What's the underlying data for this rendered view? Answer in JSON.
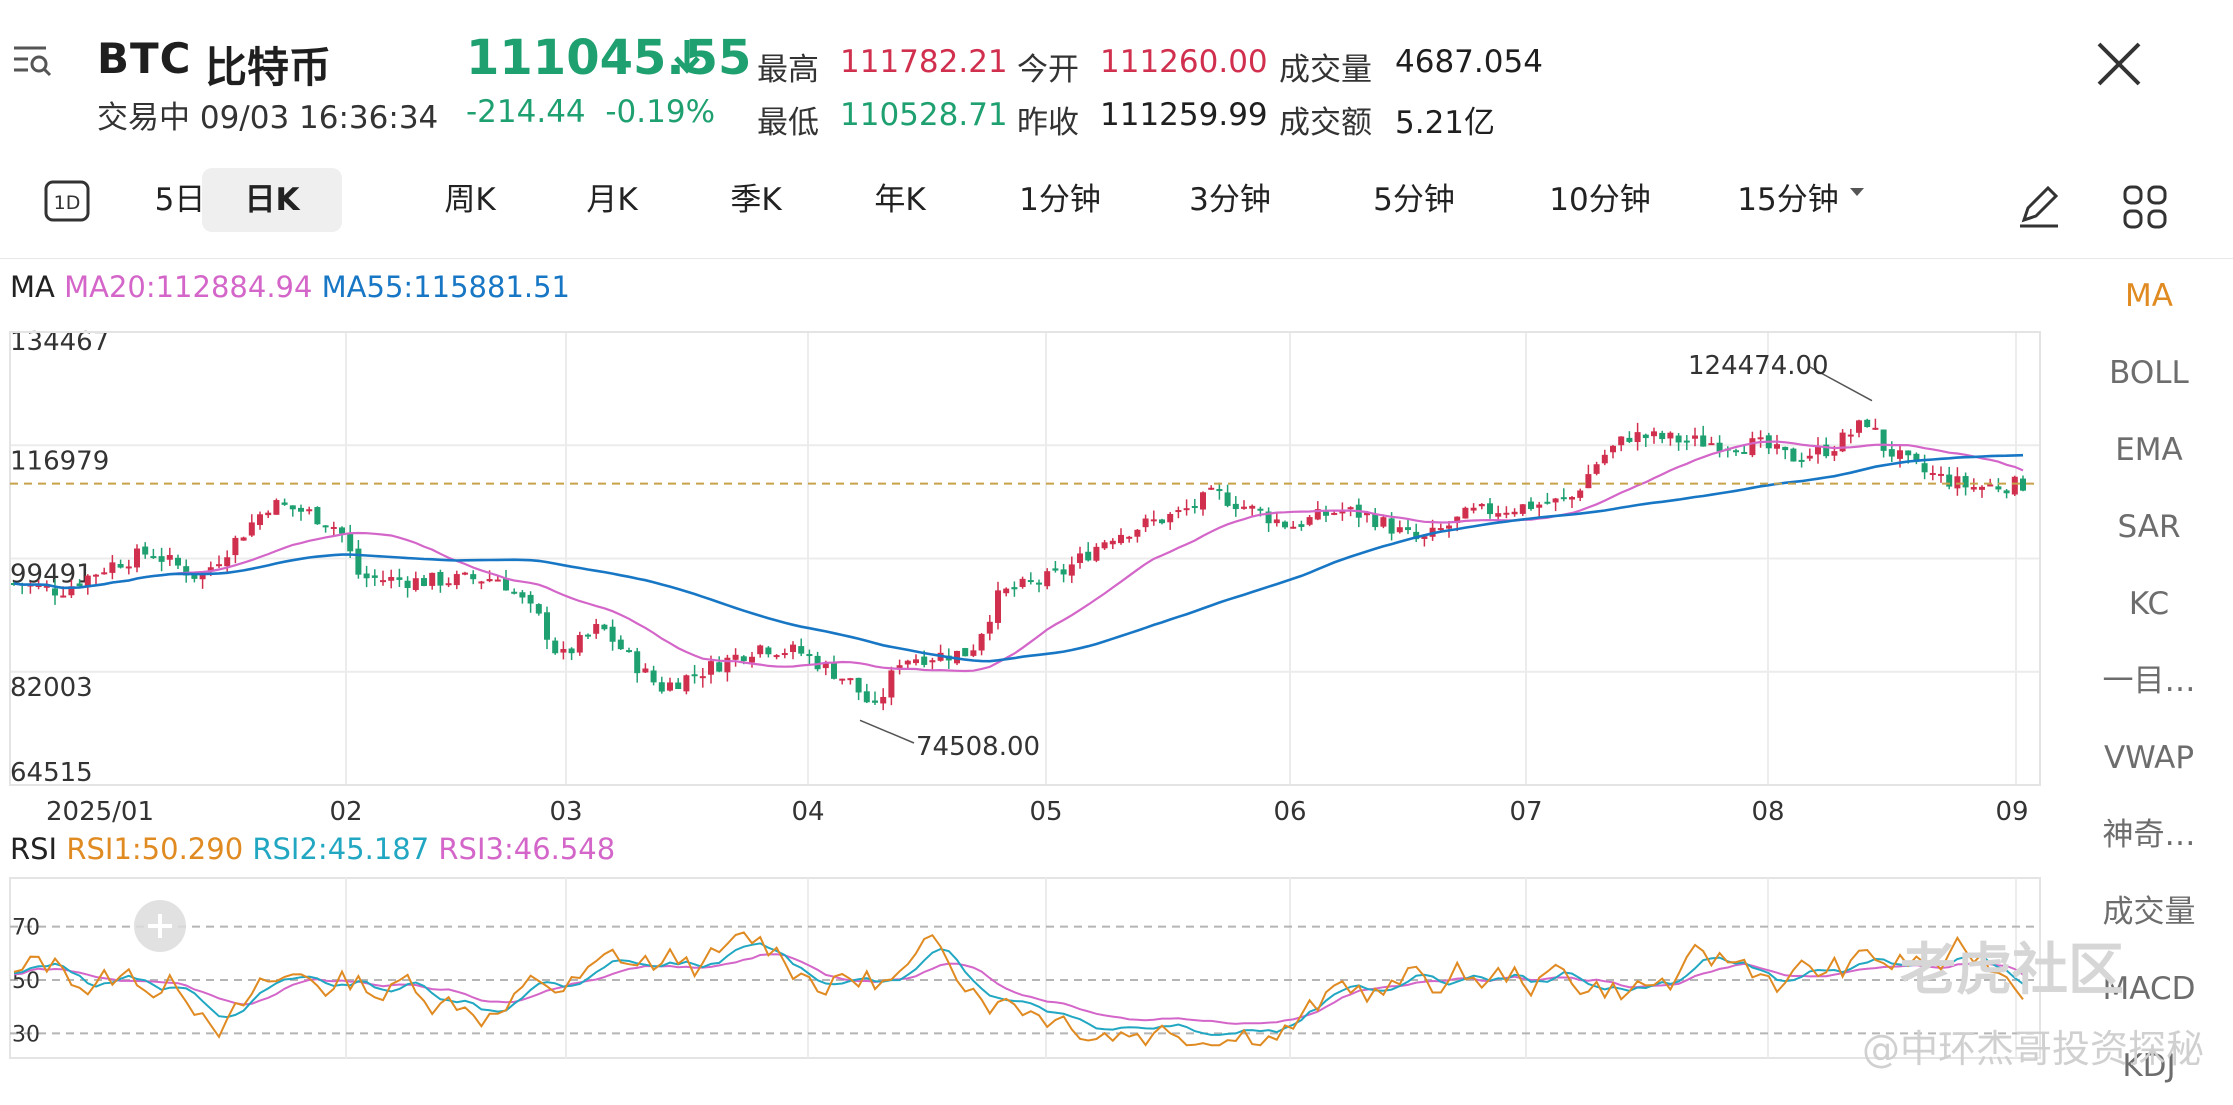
{
  "header": {
    "menu_icon": "menu-search-icon",
    "symbol": "BTC",
    "name": "比特币",
    "status": "交易中 09/03 16:36:34",
    "price": "111045.55",
    "direction_icon": "down-arrow-icon",
    "change": "-214.44",
    "change_pct": "-0.19%",
    "stats": {
      "high_label": "最高",
      "high": "111782.21",
      "low_label": "最低",
      "low": "110528.71",
      "open_label": "今开",
      "open": "111260.00",
      "prev_close_label": "昨收",
      "prev_close": "111259.99",
      "volume_label": "成交量",
      "volume": "4687.054",
      "amount_label": "成交额",
      "amount": "5.21亿"
    },
    "close_icon": "close-icon"
  },
  "toolbar": {
    "icon_1d": "1D",
    "tabs": [
      "5日",
      "日K",
      "周K",
      "月K",
      "季K",
      "年K",
      "1分钟",
      "3分钟",
      "5分钟",
      "10分钟",
      "15分钟"
    ],
    "active_tab": "日K",
    "draw_icon": "pencil-icon",
    "layout_icon": "grid-icon"
  },
  "indicators": {
    "ma_label": "MA",
    "ma20": "MA20:112884.94",
    "ma55": "MA55:115881.51",
    "rsi_label": "RSI",
    "rsi1": "RSI1:50.290",
    "rsi2": "RSI2:45.187",
    "rsi3": "RSI3:46.548",
    "colors": {
      "ma20": "#d466c9",
      "ma55": "#1877c5",
      "rsi1": "#e08a22",
      "rsi2": "#21a7c2",
      "rsi3": "#d466c9",
      "up": "#d12f4e",
      "down": "#1fa071"
    }
  },
  "sidebar": [
    "MA",
    "BOLL",
    "EMA",
    "SAR",
    "KC",
    "一目…",
    "VWAP",
    "神奇…",
    "成交量",
    "MACD",
    "KDJ"
  ],
  "sidebar_active": "MA",
  "chart_data": {
    "type": "candlestick",
    "y_ticks": [
      "134467",
      "116979",
      "99491",
      "82003",
      "64515"
    ],
    "ylim": [
      64515,
      134467
    ],
    "x_ticks": [
      "2025/01",
      "02",
      "03",
      "04",
      "05",
      "06",
      "07",
      "08",
      "09"
    ],
    "max_label": "124474.00",
    "min_label": "74508.00",
    "last_price": 111045.55,
    "rsi_ticks": [
      "70",
      "50",
      "30"
    ],
    "rsi_lines": [
      70,
      50,
      30
    ]
  },
  "watermark": {
    "brand": "老虎社区",
    "author": "@中环杰哥投资探秘"
  }
}
